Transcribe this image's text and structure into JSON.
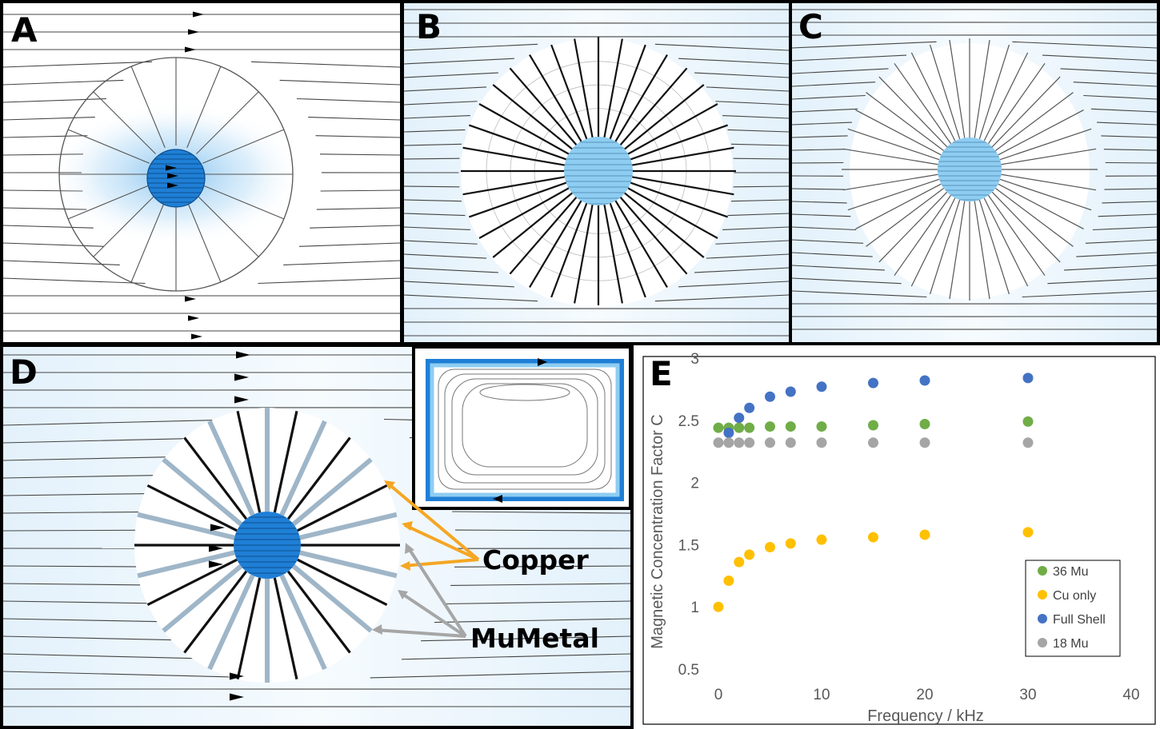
{
  "panels": {
    "a": "A",
    "b": "B",
    "c": "C",
    "d": "D",
    "e": "E"
  },
  "annotations": {
    "copper": "Copper",
    "mumetal": "MuMetal",
    "copper_color": "#f5a623",
    "mumetal_color": "#a6a6a6"
  },
  "colors": {
    "field_blue": "#1f7fd6",
    "field_light": "#d6ecfa",
    "line": "#333333"
  },
  "chart_data": {
    "type": "scatter",
    "title": "",
    "xlabel": "Frequency / kHz",
    "ylabel": "Magnetic Concentration Factor C",
    "xlim": [
      0,
      40
    ],
    "ylim": [
      0.5,
      3
    ],
    "xticks": [
      "0",
      "10",
      "20",
      "30",
      "40"
    ],
    "yticks": [
      "0.5",
      "1",
      "1.5",
      "2",
      "2.5",
      "3"
    ],
    "legend_position": "bottom-right",
    "grid": false,
    "series": [
      {
        "name": "36 Mu",
        "color": "#70ad47",
        "points": [
          [
            0,
            2.44
          ],
          [
            1,
            2.44
          ],
          [
            2,
            2.44
          ],
          [
            3,
            2.44
          ],
          [
            5,
            2.45
          ],
          [
            7,
            2.45
          ],
          [
            10,
            2.45
          ],
          [
            15,
            2.46
          ],
          [
            20,
            2.47
          ],
          [
            30,
            2.49
          ]
        ]
      },
      {
        "name": "Cu only",
        "color": "#ffc000",
        "points": [
          [
            0,
            1.0
          ],
          [
            1,
            1.21
          ],
          [
            2,
            1.36
          ],
          [
            3,
            1.42
          ],
          [
            5,
            1.48
          ],
          [
            7,
            1.51
          ],
          [
            10,
            1.54
          ],
          [
            15,
            1.56
          ],
          [
            20,
            1.58
          ],
          [
            30,
            1.6
          ]
        ]
      },
      {
        "name": "Full Shell",
        "color": "#4472c4",
        "points": [
          [
            1,
            2.4
          ],
          [
            2,
            2.52
          ],
          [
            3,
            2.6
          ],
          [
            5,
            2.69
          ],
          [
            7,
            2.73
          ],
          [
            10,
            2.77
          ],
          [
            15,
            2.8
          ],
          [
            20,
            2.82
          ],
          [
            30,
            2.84
          ]
        ]
      },
      {
        "name": "18 Mu",
        "color": "#a5a5a5",
        "points": [
          [
            0,
            2.32
          ],
          [
            1,
            2.32
          ],
          [
            2,
            2.32
          ],
          [
            3,
            2.32
          ],
          [
            5,
            2.32
          ],
          [
            7,
            2.32
          ],
          [
            10,
            2.32
          ],
          [
            15,
            2.32
          ],
          [
            20,
            2.32
          ],
          [
            30,
            2.32
          ]
        ]
      }
    ]
  }
}
